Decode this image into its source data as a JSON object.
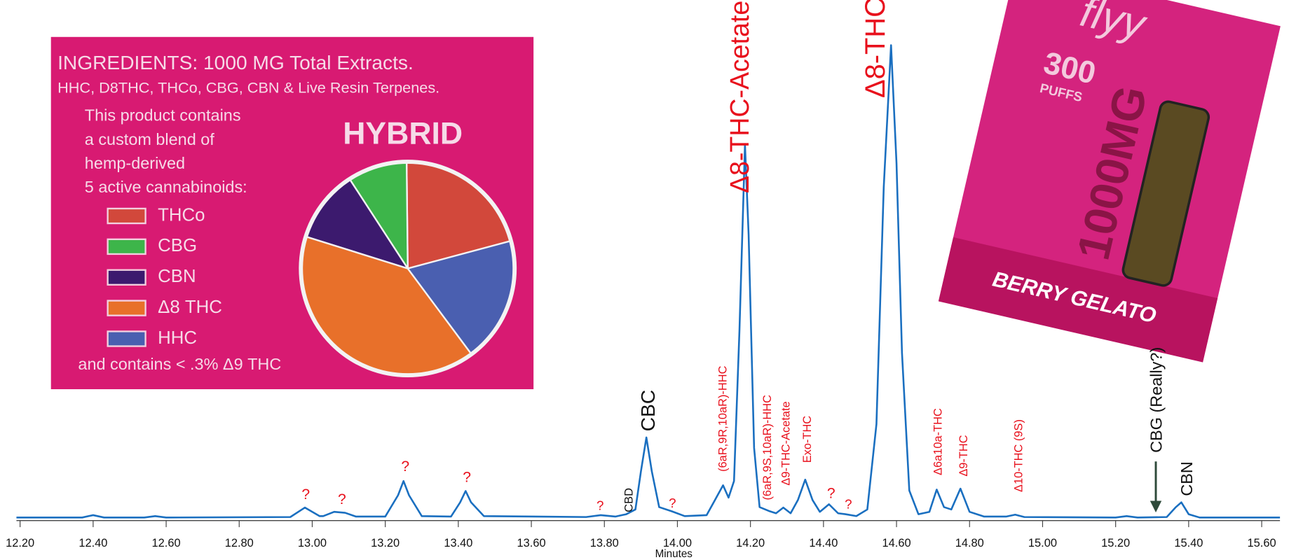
{
  "chart_data": [
    {
      "type": "line",
      "x_label": "Minutes",
      "color": "#1a6fc0",
      "x": [
        12.19,
        12.37,
        12.4,
        12.43,
        12.54,
        12.57,
        12.6,
        12.94,
        12.98,
        13.02,
        13.03,
        13.06,
        13.09,
        13.12,
        13.2,
        13.235,
        13.25,
        13.265,
        13.3,
        13.38,
        13.405,
        13.42,
        13.435,
        13.47,
        13.75,
        13.79,
        13.83,
        13.86,
        13.885,
        13.9,
        13.915,
        13.93,
        13.95,
        13.985,
        14.02,
        14.08,
        14.11,
        14.125,
        14.14,
        14.155,
        14.17,
        14.185,
        14.195,
        14.21,
        14.225,
        14.25,
        14.27,
        14.29,
        14.31,
        14.33,
        14.35,
        14.37,
        14.39,
        14.415,
        14.44,
        14.46,
        14.49,
        14.52,
        14.545,
        14.565,
        14.585,
        14.6,
        14.615,
        14.635,
        14.66,
        14.69,
        14.71,
        14.73,
        14.75,
        14.775,
        14.8,
        14.84,
        14.9,
        14.925,
        14.95,
        15.2,
        15.23,
        15.26,
        15.34,
        15.365,
        15.38,
        15.4,
        15.43,
        15.65
      ],
      "values": [
        0.3,
        0.3,
        0.8,
        0.3,
        0.3,
        0.6,
        0.3,
        0.4,
        2.4,
        0.6,
        0.6,
        1.5,
        1.3,
        0.5,
        0.5,
        5,
        8,
        5,
        0.6,
        0.5,
        3.5,
        5.9,
        3.5,
        0.6,
        0.4,
        0.8,
        0.5,
        1.0,
        2,
        10,
        17.2,
        10,
        2.5,
        1.6,
        0.6,
        0.8,
        5,
        7.1,
        4.5,
        8,
        40,
        79,
        60,
        15,
        2.5,
        1.7,
        1.2,
        2.4,
        1.2,
        4,
        8.3,
        4,
        1.5,
        3.1,
        1.2,
        1.0,
        0.6,
        2,
        20,
        70,
        100,
        75,
        35,
        6,
        1,
        1.5,
        6.2,
        2.5,
        2,
        6.4,
        1.5,
        0.5,
        0.5,
        0.9,
        0.4,
        0.3,
        0.6,
        0.3,
        0.4,
        2.5,
        3.5,
        1,
        0.3,
        0.3
      ],
      "xlim": [
        12.19,
        15.65
      ],
      "ylim": [
        0,
        100
      ],
      "xticks": [
        {
          "value": 12.2,
          "label": "12.20"
        },
        {
          "value": 12.4,
          "label": "12.40"
        },
        {
          "value": 12.6,
          "label": "12.60"
        },
        {
          "value": 12.8,
          "label": "12.80"
        },
        {
          "value": 13.0,
          "label": "13.00"
        },
        {
          "value": 13.2,
          "label": "13.20"
        },
        {
          "value": 13.4,
          "label": "13.40"
        },
        {
          "value": 13.6,
          "label": "13.60"
        },
        {
          "value": 13.8,
          "label": "13.80"
        },
        {
          "value": 14.0,
          "label": "14.00"
        },
        {
          "value": 14.2,
          "label": "14.20"
        },
        {
          "value": 14.4,
          "label": "14.40"
        },
        {
          "value": 14.6,
          "label": "14.60"
        },
        {
          "value": 14.8,
          "label": "14.80"
        },
        {
          "value": 15.0,
          "label": "15.00"
        },
        {
          "value": 15.2,
          "label": "15.20"
        },
        {
          "value": 15.4,
          "label": "15.40"
        },
        {
          "value": 15.6,
          "label": "15.60"
        }
      ],
      "annotations": [
        {
          "text": "?",
          "color": "#e8101c"
        },
        {
          "text": "?",
          "color": "#e8101c"
        },
        {
          "text": "?",
          "color": "#e8101c"
        },
        {
          "text": "?",
          "color": "#e8101c"
        },
        {
          "text": "?",
          "color": "#e8101c"
        },
        {
          "text": "CBD",
          "color": "#111111"
        },
        {
          "text": "CBC",
          "color": "#111111"
        },
        {
          "text": "?",
          "color": "#e8101c"
        },
        {
          "text": "(6aR,9R,10aR)-HHC",
          "color": "#e8101c"
        },
        {
          "text": "Δ8-THC-Acetate",
          "color": "#e8101c"
        },
        {
          "text": "(6aR,9S,10aR)-HHC",
          "color": "#e8101c"
        },
        {
          "text": "Δ9-THC-Acetate",
          "color": "#e8101c"
        },
        {
          "text": "Exo-THC",
          "color": "#e8101c"
        },
        {
          "text": "?",
          "color": "#e8101c"
        },
        {
          "text": "?",
          "color": "#e8101c"
        },
        {
          "text": "Δ8-THC",
          "color": "#e8101c"
        },
        {
          "text": "Δ6a10a-THC",
          "color": "#e8101c"
        },
        {
          "text": "Δ9-THC",
          "color": "#e8101c"
        },
        {
          "text": "Δ10-THC (9S)",
          "color": "#e8101c"
        },
        {
          "text": "CBG (Really?)",
          "color": "#111111"
        },
        {
          "text": "CBN",
          "color": "#111111"
        }
      ]
    },
    {
      "type": "pie",
      "title": "HYBRID",
      "categories": [
        "THCo",
        "CBG",
        "CBN",
        "Δ8 THC",
        "HHC"
      ],
      "values": [
        21,
        9,
        11,
        40,
        19
      ],
      "colors": [
        "#d2483b",
        "#3db54a",
        "#3c1a6e",
        "#e8702a",
        "#4a5fb0"
      ]
    }
  ],
  "ingredients_panel": {
    "heading": "INGREDIENTS: 1000 MG Total Extracts.",
    "subheading": "HHC, D8THC, THCo, CBG, CBN & Live Resin Terpenes.",
    "description": [
      "This product contains",
      "a custom blend of",
      "hemp-derived",
      "5 active cannabinoids:"
    ],
    "footnote": "and contains < .3% Δ9 THC"
  },
  "product": {
    "brand": "flyy",
    "puffs_count": "300",
    "puffs_label": "PUFFS",
    "strength": "1000MG",
    "flavor": "BERRY GELATO"
  }
}
